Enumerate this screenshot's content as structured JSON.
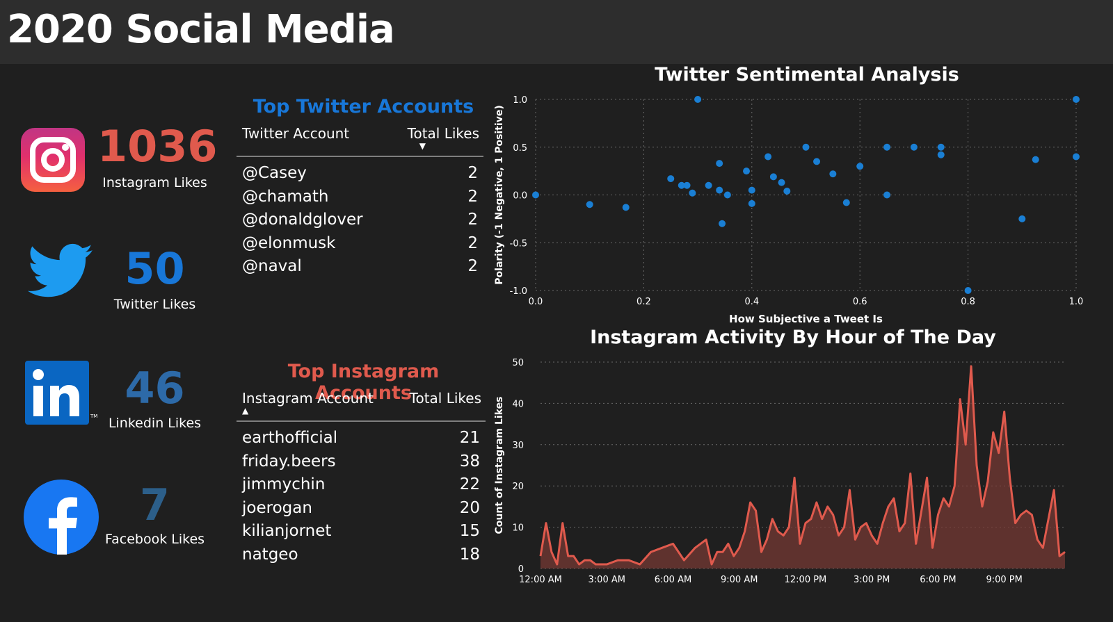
{
  "page": {
    "title": "2020 Social Media"
  },
  "kpis": {
    "instagram": {
      "value": "1036",
      "label": "Instagram Likes",
      "color": "#e05a4d",
      "icon": "instagram-logo"
    },
    "twitter": {
      "value": "50",
      "label": "Twitter Likes",
      "color": "#1877d8",
      "icon": "twitter-logo"
    },
    "linkedin": {
      "value": "46",
      "label": "Linkedin Likes",
      "color": "#2d6aa8",
      "icon": "linkedin-logo"
    },
    "facebook": {
      "value": "7",
      "label": "Facebook Likes",
      "color": "#2c5f8a",
      "icon": "facebook-logo"
    }
  },
  "twitter_table": {
    "title": "Top Twitter Accounts",
    "col1": "Twitter Account",
    "col2": "Total Likes",
    "sort": "descending",
    "rows": [
      {
        "account": "@Casey",
        "likes": "2"
      },
      {
        "account": "@chamath",
        "likes": "2"
      },
      {
        "account": "@donaldglover",
        "likes": "2"
      },
      {
        "account": "@elonmusk",
        "likes": "2"
      },
      {
        "account": "@naval",
        "likes": "2"
      }
    ]
  },
  "instagram_table": {
    "title": "Top Instagram Accounts",
    "col1": "Instagram Account",
    "col2": "Total Likes",
    "sort": "ascending",
    "rows": [
      {
        "account": "earthofficial",
        "likes": "21"
      },
      {
        "account": "friday.beers",
        "likes": "38"
      },
      {
        "account": "jimmychin",
        "likes": "22"
      },
      {
        "account": "joerogan",
        "likes": "20"
      },
      {
        "account": "kilianjornet",
        "likes": "15"
      },
      {
        "account": "natgeo",
        "likes": "18"
      }
    ]
  },
  "chart_data": [
    {
      "type": "scatter",
      "title": "Twitter Sentimental Analysis",
      "xlabel": "How Subjective a Tweet Is",
      "ylabel": "Polarity (-1 Negative, 1 Positive)",
      "xlim": [
        0,
        1
      ],
      "ylim": [
        -1,
        1
      ],
      "xticks": [
        "0.0",
        "0.2",
        "0.4",
        "0.6",
        "0.8",
        "1.0"
      ],
      "yticks": [
        "1.0",
        "0.5",
        "0.0",
        "-0.5",
        "-1.0"
      ],
      "grid": true,
      "color": "#1a7fd4",
      "points": [
        [
          0.0,
          0.0
        ],
        [
          0.1,
          -0.1
        ],
        [
          0.167,
          -0.13
        ],
        [
          0.25,
          0.17
        ],
        [
          0.27,
          0.1
        ],
        [
          0.28,
          0.1
        ],
        [
          0.29,
          0.02
        ],
        [
          0.3,
          1.0
        ],
        [
          0.32,
          0.1
        ],
        [
          0.34,
          0.33
        ],
        [
          0.34,
          0.05
        ],
        [
          0.345,
          -0.3
        ],
        [
          0.355,
          0.0
        ],
        [
          0.39,
          0.25
        ],
        [
          0.4,
          0.05
        ],
        [
          0.4,
          -0.09
        ],
        [
          0.43,
          0.4
        ],
        [
          0.44,
          0.19
        ],
        [
          0.455,
          0.13
        ],
        [
          0.465,
          0.04
        ],
        [
          0.5,
          0.5
        ],
        [
          0.52,
          0.35
        ],
        [
          0.55,
          0.22
        ],
        [
          0.575,
          -0.08
        ],
        [
          0.6,
          0.3
        ],
        [
          0.65,
          0.5
        ],
        [
          0.65,
          0.0
        ],
        [
          0.7,
          0.5
        ],
        [
          0.75,
          0.5
        ],
        [
          0.75,
          0.42
        ],
        [
          0.8,
          -1.0
        ],
        [
          0.9,
          -0.25
        ],
        [
          0.925,
          0.37
        ],
        [
          1.0,
          0.4
        ],
        [
          1.0,
          1.0
        ]
      ]
    },
    {
      "type": "area",
      "title": "Instagram Activity By Hour of The Day",
      "xlabel": "",
      "ylabel": "Count of Instagram Likes",
      "ylim": [
        0,
        50
      ],
      "yticks": [
        "0",
        "10",
        "20",
        "30",
        "40",
        "50"
      ],
      "xticks": [
        "12:00 AM",
        "3:00 AM",
        "6:00 AM",
        "9:00 AM",
        "12:00 PM",
        "3:00 PM",
        "6:00 PM",
        "9:00 PM"
      ],
      "x_range_hours": [
        0,
        23.75
      ],
      "grid": true,
      "color": "#e05a4d",
      "fill": "#7a3a35",
      "hours": [
        0,
        0.25,
        0.5,
        0.75,
        1,
        1.25,
        1.5,
        1.75,
        2,
        2.25,
        2.5,
        2.75,
        3,
        3.5,
        4,
        4.5,
        5,
        5.5,
        6,
        6.5,
        7,
        7.5,
        7.75,
        8,
        8.25,
        8.5,
        8.75,
        9,
        9.25,
        9.5,
        9.75,
        10,
        10.25,
        10.5,
        10.75,
        11,
        11.25,
        11.5,
        11.75,
        12,
        12.25,
        12.5,
        12.75,
        13,
        13.25,
        13.5,
        13.75,
        14,
        14.25,
        14.5,
        14.75,
        15,
        15.25,
        15.5,
        15.75,
        16,
        16.25,
        16.5,
        16.75,
        17,
        17.25,
        17.5,
        17.75,
        18,
        18.25,
        18.5,
        18.75,
        19,
        19.25,
        19.5,
        19.75,
        20,
        20.25,
        20.5,
        20.75,
        21,
        21.25,
        21.5,
        21.75,
        22,
        22.25,
        22.5,
        22.75,
        23,
        23.25,
        23.5,
        23.75
      ],
      "values": [
        3,
        11,
        4,
        1,
        11,
        3,
        3,
        1,
        2,
        2,
        1,
        1,
        1,
        2,
        2,
        1,
        4,
        5,
        6,
        2,
        5,
        7,
        1,
        4,
        4,
        6,
        3,
        5,
        9,
        16,
        14,
        4,
        7,
        12,
        9,
        8,
        10,
        22,
        6,
        11,
        12,
        16,
        12,
        15,
        13,
        8,
        10,
        19,
        7,
        10,
        11,
        8,
        6,
        11,
        15,
        17,
        9,
        11,
        23,
        6,
        14,
        22,
        5,
        13,
        17,
        15,
        20,
        41,
        30,
        49,
        25,
        15,
        21,
        33,
        28,
        38,
        22,
        11,
        13,
        14,
        13,
        7,
        5,
        12,
        19,
        3,
        4
      ],
      "fill_opacity": 0.7
    }
  ]
}
